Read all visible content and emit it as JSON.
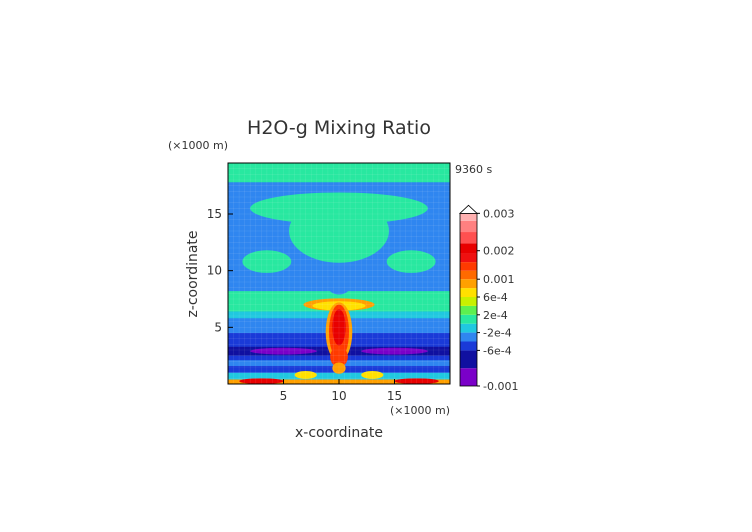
{
  "chart_data": {
    "type": "heatmap",
    "title": "H2O-g Mixing Ratio",
    "time_label": "9360 s",
    "xlabel": "x-coordinate",
    "ylabel": "z-coordinate",
    "x_unit": "(×1000 m)",
    "y_unit": "(×1000 m)",
    "xlim": [
      0,
      20
    ],
    "ylim": [
      0,
      19.5
    ],
    "x_ticks": [
      {
        "v": 5,
        "label": "5"
      },
      {
        "v": 10,
        "label": "10"
      },
      {
        "v": 15,
        "label": "15"
      }
    ],
    "y_ticks": [
      {
        "v": 5,
        "label": "5"
      },
      {
        "v": 10,
        "label": "10"
      },
      {
        "v": 15,
        "label": "15"
      }
    ],
    "colorbar_labels": [
      {
        "v": 0.003,
        "label": "0.003"
      },
      {
        "v": 0.002,
        "label": "0.002"
      },
      {
        "v": 0.001,
        "label": "0.001"
      },
      {
        "v": 0.0006,
        "label": "6e-4"
      },
      {
        "v": 0.0002,
        "label": "2e-4"
      },
      {
        "v": -0.0002,
        "label": "-2e-4"
      },
      {
        "v": -0.0006,
        "label": "-6e-4"
      },
      {
        "v": -0.001,
        "label": "-0.001"
      }
    ],
    "colorbar_levels": [
      {
        "lo": -0.001,
        "hi": -0.0008,
        "color": "#7a00c8"
      },
      {
        "lo": -0.0008,
        "hi": -0.0006,
        "color": "#1010a0"
      },
      {
        "lo": -0.0006,
        "hi": -0.0004,
        "color": "#1a3ad8"
      },
      {
        "lo": -0.0004,
        "hi": -0.0002,
        "color": "#2f86f0"
      },
      {
        "lo": -0.0002,
        "hi": 0.0,
        "color": "#20c8e0"
      },
      {
        "lo": 0.0,
        "hi": 0.0002,
        "color": "#28e8a0"
      },
      {
        "lo": 0.0002,
        "hi": 0.0004,
        "color": "#5cf050"
      },
      {
        "lo": 0.0004,
        "hi": 0.0006,
        "color": "#c8f000"
      },
      {
        "lo": 0.0006,
        "hi": 0.0008,
        "color": "#ffe000"
      },
      {
        "lo": 0.0008,
        "hi": 0.001,
        "color": "#ffa000"
      },
      {
        "lo": 0.001,
        "hi": 0.0013,
        "color": "#ff6a00"
      },
      {
        "lo": 0.0013,
        "hi": 0.0016,
        "color": "#ff3a00"
      },
      {
        "lo": 0.0016,
        "hi": 0.0019,
        "color": "#f01010"
      },
      {
        "lo": 0.0019,
        "hi": 0.0022,
        "color": "#e80000"
      },
      {
        "lo": 0.0022,
        "hi": 0.0025,
        "color": "#ff5050"
      },
      {
        "lo": 0.0025,
        "hi": 0.0028,
        "color": "#ff8080"
      },
      {
        "lo": 0.0028,
        "hi": 0.003,
        "color": "#ffb0b0"
      }
    ],
    "field_bands": [
      {
        "y0": 0.0,
        "y1": 0.4,
        "color": "#ffa000"
      },
      {
        "y0": 0.4,
        "y1": 1.0,
        "color": "#20c8e0"
      },
      {
        "y0": 1.0,
        "y1": 1.6,
        "color": "#1a3ad8"
      },
      {
        "y0": 1.6,
        "y1": 2.1,
        "color": "#2f86f0"
      },
      {
        "y0": 2.1,
        "y1": 2.5,
        "color": "#1a3ad8"
      },
      {
        "y0": 2.5,
        "y1": 3.3,
        "color": "#1010a0"
      },
      {
        "y0": 3.3,
        "y1": 4.5,
        "color": "#1a3ad8"
      },
      {
        "y0": 4.5,
        "y1": 5.8,
        "color": "#2f86f0"
      },
      {
        "y0": 5.8,
        "y1": 6.4,
        "color": "#20c8e0"
      },
      {
        "y0": 6.4,
        "y1": 8.2,
        "color": "#28e8a0"
      },
      {
        "y0": 8.2,
        "y1": 9.8,
        "color": "#2f86f0"
      },
      {
        "y0": 9.8,
        "y1": 12.2,
        "color": "#2f86f0"
      },
      {
        "y0": 12.2,
        "y1": 16.5,
        "color": "#2f86f0"
      },
      {
        "y0": 16.5,
        "y1": 17.8,
        "color": "#2f86f0"
      },
      {
        "y0": 17.8,
        "y1": 19.5,
        "color": "#28e8a0"
      }
    ],
    "field_blobs": [
      {
        "cx": 3.5,
        "cy": 10.8,
        "rx": 2.2,
        "ry": 1.0,
        "color": "#28e8a0"
      },
      {
        "cx": 16.5,
        "cy": 10.8,
        "rx": 2.2,
        "ry": 1.0,
        "color": "#28e8a0"
      },
      {
        "cx": 10,
        "cy": 13.5,
        "rx": 4.5,
        "ry": 2.8,
        "color": "#28e8a0"
      },
      {
        "cx": 10,
        "cy": 15.5,
        "rx": 8.0,
        "ry": 1.4,
        "color": "#28e8a0"
      },
      {
        "cx": 10,
        "cy": 8.6,
        "rx": 1.0,
        "ry": 0.7,
        "color": "#2f86f0"
      },
      {
        "cx": 10,
        "cy": 7.0,
        "rx": 3.2,
        "ry": 0.55,
        "color": "#ffa000"
      },
      {
        "cx": 10,
        "cy": 6.9,
        "rx": 2.4,
        "ry": 0.4,
        "color": "#ffe000"
      },
      {
        "cx": 10,
        "cy": 4.6,
        "rx": 1.2,
        "ry": 2.6,
        "color": "#ffa000"
      },
      {
        "cx": 10,
        "cy": 4.6,
        "rx": 0.9,
        "ry": 2.4,
        "color": "#ff3a00"
      },
      {
        "cx": 10,
        "cy": 5.0,
        "rx": 0.6,
        "ry": 1.6,
        "color": "#e80000"
      },
      {
        "cx": 10,
        "cy": 2.4,
        "rx": 0.8,
        "ry": 0.9,
        "color": "#ff3a00"
      },
      {
        "cx": 10,
        "cy": 1.4,
        "rx": 0.6,
        "ry": 0.5,
        "color": "#ffa000"
      },
      {
        "cx": 7.0,
        "cy": 0.8,
        "rx": 1.0,
        "ry": 0.35,
        "color": "#ffe000"
      },
      {
        "cx": 13.0,
        "cy": 0.8,
        "rx": 1.0,
        "ry": 0.35,
        "color": "#ffe000"
      },
      {
        "cx": 3.0,
        "cy": 0.25,
        "rx": 2.0,
        "ry": 0.25,
        "color": "#e80000"
      },
      {
        "cx": 17.0,
        "cy": 0.25,
        "rx": 2.0,
        "ry": 0.25,
        "color": "#e80000"
      },
      {
        "cx": 5.0,
        "cy": 2.9,
        "rx": 3.0,
        "ry": 0.3,
        "color": "#7a00c8"
      },
      {
        "cx": 15.0,
        "cy": 2.9,
        "rx": 3.0,
        "ry": 0.3,
        "color": "#7a00c8"
      }
    ]
  }
}
